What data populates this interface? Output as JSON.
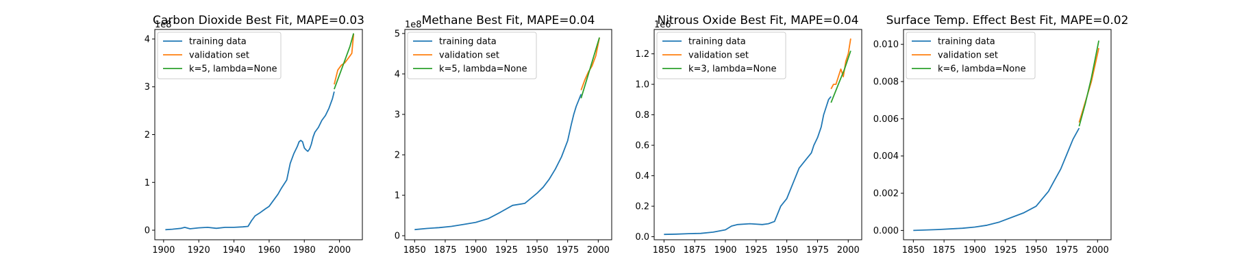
{
  "colors": {
    "training": "#1f77b4",
    "validation": "#ff7f0e",
    "fit": "#2ca02c",
    "axis": "#000000",
    "legend_border": "#cccccc"
  },
  "chart_data": [
    {
      "type": "line",
      "title": "Carbon Dioxide Best Fit, MAPE=0.03",
      "xlabel": "",
      "ylabel": "",
      "xlim": [
        1895,
        2013
      ],
      "ylim": [
        -0.2,
        4.2
      ],
      "y_scale_label": "1e8",
      "x_ticks": [
        1900,
        1920,
        1940,
        1960,
        1980,
        2000
      ],
      "y_ticks": [
        0,
        1,
        2,
        3,
        4
      ],
      "y_tick_labels": [
        "0",
        "1",
        "2",
        "3",
        "4"
      ],
      "legend": [
        "training data",
        "validation set",
        "k=5, lambda=None"
      ],
      "legend_position": "top-left",
      "series": [
        {
          "name": "training data",
          "x": [
            1901,
            1905,
            1910,
            1912,
            1915,
            1920,
            1925,
            1930,
            1935,
            1940,
            1945,
            1948,
            1950,
            1952,
            1955,
            1958,
            1960,
            1962,
            1965,
            1967,
            1970,
            1972,
            1974,
            1976,
            1977,
            1978,
            1979,
            1980,
            1981,
            1982,
            1983,
            1984,
            1985,
            1986,
            1988,
            1990,
            1992,
            1994,
            1996,
            1997
          ],
          "y": [
            0.01,
            0.02,
            0.04,
            0.06,
            0.03,
            0.05,
            0.06,
            0.04,
            0.06,
            0.06,
            0.07,
            0.08,
            0.2,
            0.3,
            0.37,
            0.45,
            0.5,
            0.6,
            0.75,
            0.88,
            1.05,
            1.4,
            1.6,
            1.75,
            1.85,
            1.88,
            1.85,
            1.72,
            1.68,
            1.65,
            1.7,
            1.8,
            1.95,
            2.05,
            2.15,
            2.3,
            2.4,
            2.55,
            2.75,
            2.9
          ]
        },
        {
          "name": "validation set",
          "x": [
            1997,
            1999,
            2001,
            2003,
            2005,
            2007,
            2008
          ],
          "y": [
            3.05,
            3.35,
            3.45,
            3.5,
            3.6,
            3.7,
            4.1
          ]
        },
        {
          "name": "k=5, lambda=None",
          "x": [
            1997,
            2000,
            2003,
            2006,
            2008
          ],
          "y": [
            2.95,
            3.25,
            3.55,
            3.85,
            4.12
          ]
        }
      ]
    },
    {
      "type": "line",
      "title": "Methane Best Fit, MAPE=0.04",
      "xlabel": "",
      "ylabel": "",
      "xlim": [
        1842,
        2011
      ],
      "ylim": [
        -0.1,
        5.1
      ],
      "y_scale_label": "1e8",
      "x_ticks": [
        1850,
        1875,
        1900,
        1925,
        1950,
        1975,
        2000
      ],
      "y_ticks": [
        0,
        1,
        2,
        3,
        4,
        5
      ],
      "y_tick_labels": [
        "0",
        "1",
        "2",
        "3",
        "4",
        "5"
      ],
      "legend": [
        "training data",
        "validation set",
        "k=5, lambda=None"
      ],
      "legend_position": "top-left",
      "series": [
        {
          "name": "training data",
          "x": [
            1850,
            1860,
            1870,
            1880,
            1890,
            1900,
            1910,
            1920,
            1930,
            1940,
            1950,
            1955,
            1960,
            1965,
            1970,
            1975,
            1978,
            1980,
            1982,
            1984,
            1986
          ],
          "y": [
            0.15,
            0.18,
            0.2,
            0.23,
            0.28,
            0.33,
            0.42,
            0.58,
            0.75,
            0.8,
            1.05,
            1.2,
            1.4,
            1.65,
            1.95,
            2.35,
            2.75,
            3.0,
            3.2,
            3.35,
            3.5
          ]
        },
        {
          "name": "validation set",
          "x": [
            1986,
            1989,
            1992,
            1995,
            1998,
            2001
          ],
          "y": [
            3.6,
            3.85,
            4.05,
            4.2,
            4.45,
            4.9
          ]
        },
        {
          "name": "k=5, lambda=None",
          "x": [
            1986,
            1991,
            1996,
            2001
          ],
          "y": [
            3.4,
            3.9,
            4.4,
            4.9
          ]
        }
      ]
    },
    {
      "type": "line",
      "title": "Nitrous Oxide Best Fit, MAPE=0.04",
      "xlabel": "",
      "ylabel": "",
      "xlim": [
        1842,
        2011
      ],
      "ylim": [
        -0.02,
        1.36
      ],
      "y_scale_label": "1e6",
      "x_ticks": [
        1850,
        1875,
        1900,
        1925,
        1950,
        1975,
        2000
      ],
      "y_ticks": [
        0.0,
        0.2,
        0.4,
        0.6,
        0.8,
        1.0,
        1.2
      ],
      "y_tick_labels": [
        "0.0",
        "0.2",
        "0.4",
        "0.6",
        "0.8",
        "1.0",
        "1.2"
      ],
      "legend": [
        "training data",
        "validation set",
        "k=3, lambda=None"
      ],
      "legend_position": "top-left",
      "series": [
        {
          "name": "training data",
          "x": [
            1850,
            1860,
            1870,
            1880,
            1890,
            1900,
            1905,
            1910,
            1920,
            1930,
            1935,
            1940,
            1945,
            1950,
            1955,
            1960,
            1965,
            1970,
            1972,
            1975,
            1978,
            1980,
            1982,
            1984,
            1986
          ],
          "y": [
            0.015,
            0.017,
            0.02,
            0.022,
            0.03,
            0.045,
            0.07,
            0.08,
            0.085,
            0.08,
            0.085,
            0.1,
            0.2,
            0.25,
            0.35,
            0.45,
            0.5,
            0.55,
            0.6,
            0.65,
            0.72,
            0.8,
            0.85,
            0.9,
            0.92
          ]
        },
        {
          "name": "validation set",
          "x": [
            1986,
            1988,
            1990,
            1992,
            1994,
            1996,
            1998,
            2000,
            2002
          ],
          "y": [
            0.97,
            1.0,
            1.0,
            1.05,
            1.1,
            1.05,
            1.15,
            1.2,
            1.3
          ]
        },
        {
          "name": "k=3, lambda=None",
          "x": [
            1986,
            1992,
            1997,
            2002
          ],
          "y": [
            0.88,
            1.0,
            1.1,
            1.22
          ]
        }
      ]
    },
    {
      "type": "line",
      "title": "Surface Temp. Effect Best Fit, MAPE=0.02",
      "xlabel": "",
      "ylabel": "",
      "xlim": [
        1842,
        2011
      ],
      "ylim": [
        -0.0005,
        0.0108
      ],
      "x_ticks": [
        1850,
        1875,
        1900,
        1925,
        1950,
        1975,
        2000
      ],
      "y_ticks": [
        0.0,
        0.002,
        0.004,
        0.006,
        0.008,
        0.01
      ],
      "y_tick_labels": [
        "0.000",
        "0.002",
        "0.004",
        "0.006",
        "0.008",
        "0.010"
      ],
      "legend": [
        "training data",
        "validation set",
        "k=6, lambda=None"
      ],
      "legend_position": "top-left",
      "series": [
        {
          "name": "training data",
          "x": [
            1850,
            1870,
            1890,
            1900,
            1910,
            1920,
            1930,
            1940,
            1950,
            1955,
            1960,
            1965,
            1970,
            1975,
            1980,
            1985
          ],
          "y": [
            0.0,
            5e-05,
            0.00012,
            0.00018,
            0.00028,
            0.00045,
            0.0007,
            0.00095,
            0.0013,
            0.0017,
            0.0021,
            0.0027,
            0.0033,
            0.0041,
            0.0049,
            0.0055
          ]
        },
        {
          "name": "validation set",
          "x": [
            1985,
            1990,
            1995,
            2001
          ],
          "y": [
            0.0058,
            0.0069,
            0.008,
            0.0098
          ]
        },
        {
          "name": "k=6, lambda=None",
          "x": [
            1985,
            1990,
            1995,
            2001
          ],
          "y": [
            0.0056,
            0.0068,
            0.0082,
            0.0102
          ]
        }
      ]
    }
  ]
}
